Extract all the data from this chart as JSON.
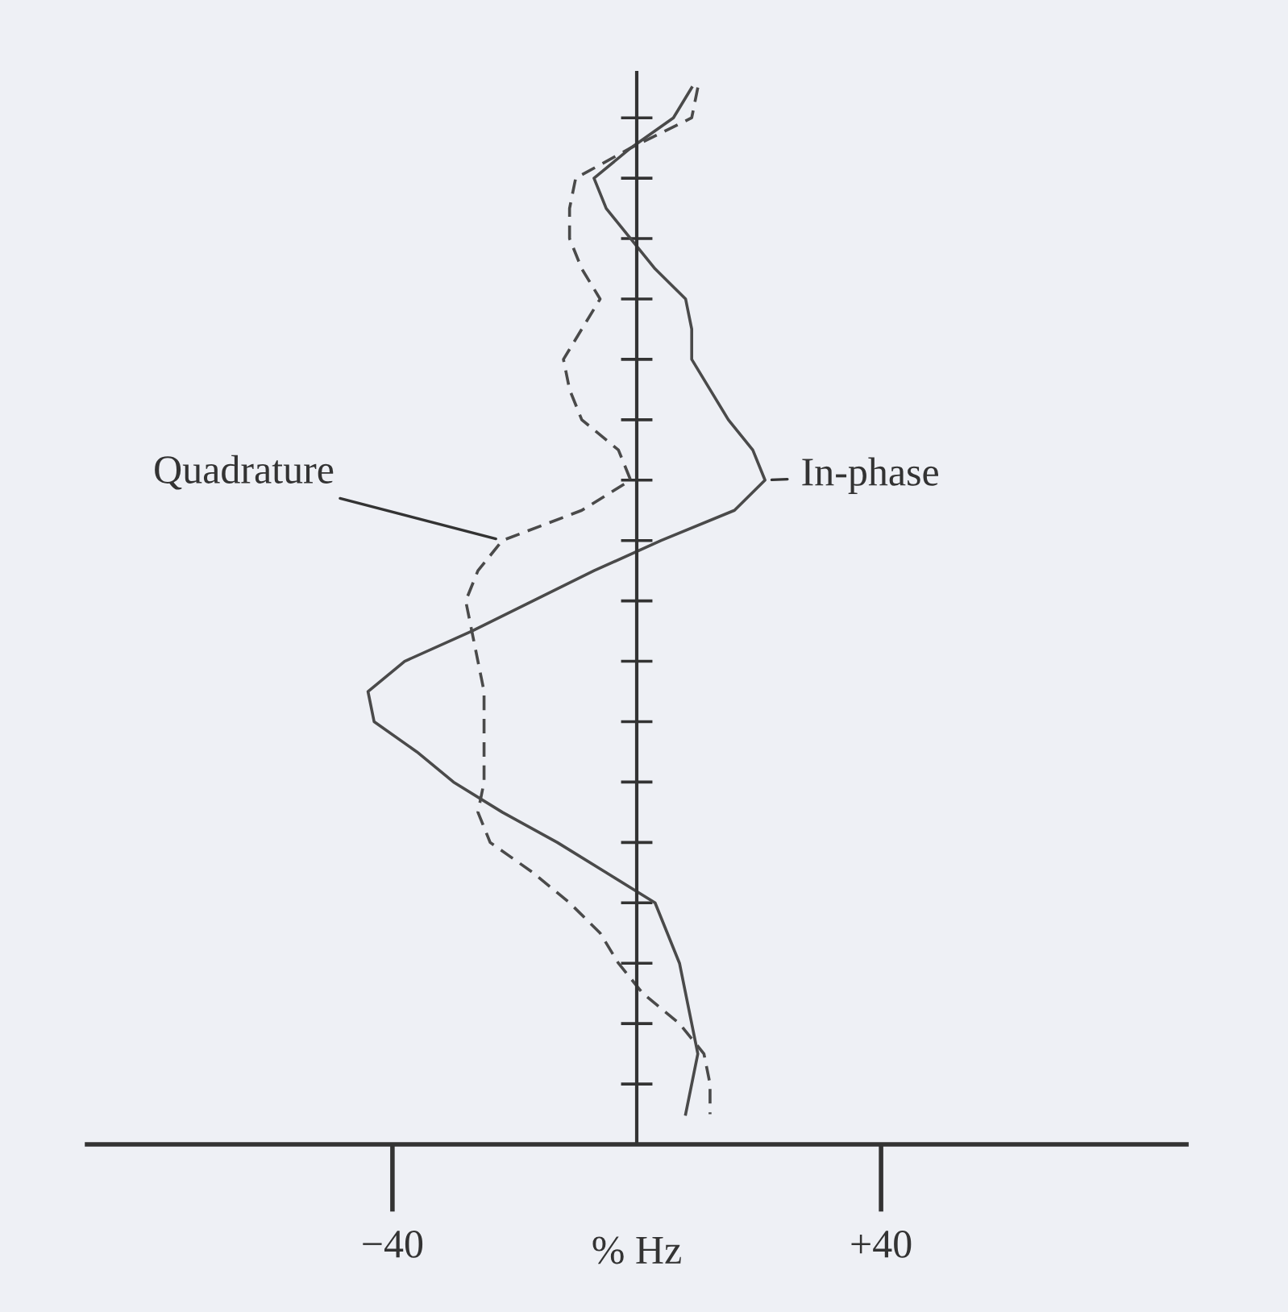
{
  "chart_data": {
    "type": "line",
    "orientation": "horizontal",
    "xlabel": "% Hz",
    "categories": [
      null,
      null,
      null,
      null,
      null,
      null,
      null,
      null,
      null,
      null,
      null,
      null,
      null,
      null,
      null,
      null,
      null,
      null,
      null,
      null,
      null,
      null,
      null,
      null,
      null,
      null,
      null,
      null,
      null,
      null,
      null,
      null,
      null,
      null,
      null
    ],
    "series": [
      {
        "name": "In-phase",
        "color": "#4a4a4a",
        "line_style": "solid",
        "values": [
          9,
          6,
          -1,
          -7,
          -5,
          -1,
          3,
          8,
          9,
          9,
          12,
          15,
          19,
          21,
          16,
          4,
          -7,
          -17,
          -27,
          -38,
          -44,
          -43,
          -36,
          -30,
          -22,
          -13,
          -5,
          3,
          5,
          7,
          8,
          9,
          10,
          9,
          8
        ]
      },
      {
        "name": "Quadrature",
        "color": "#4a4a4a",
        "line_style": "dashed",
        "values": [
          10,
          9,
          -1,
          -10,
          -11,
          -11,
          -9,
          -6,
          -9,
          -12,
          -11,
          -9,
          -3,
          -1,
          -9,
          -22,
          -26,
          -28,
          -27,
          -26,
          -25,
          -25,
          -25,
          -25,
          -26,
          -24,
          -17,
          -11,
          -6,
          -3,
          1,
          7,
          11,
          12,
          12
        ]
      }
    ],
    "xlim": [
      -90,
      90
    ],
    "xticks": [
      {
        "value": -40,
        "label": "−40"
      },
      {
        "value": 40,
        "label": "+40"
      }
    ],
    "grid": false,
    "legend": false
  }
}
